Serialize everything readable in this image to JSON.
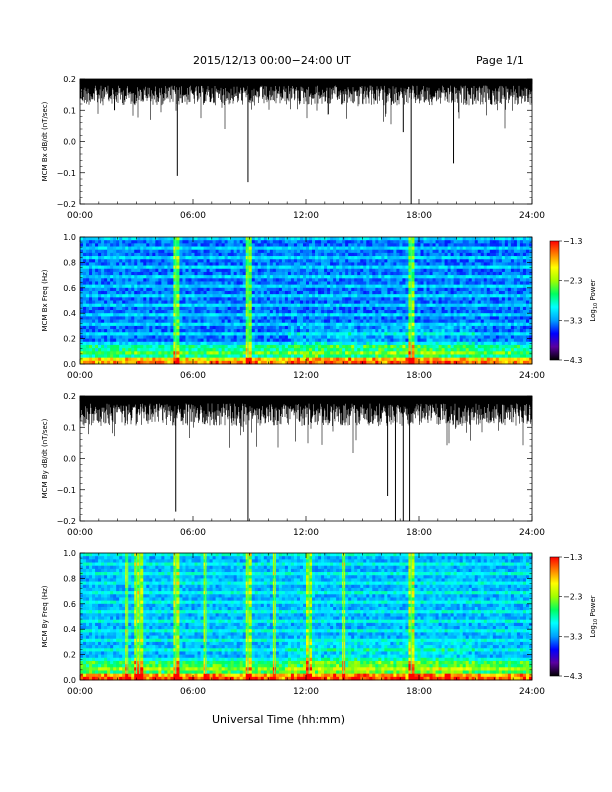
{
  "header": {
    "date_range": "2015/12/13  00:00−24:00 UT",
    "page": "Page 1/1"
  },
  "footer": {
    "xlabel": "Universal Time (hh:mm)"
  },
  "colors": {
    "trace": "#000000",
    "colorscale": [
      "#000000",
      "#5a00a0",
      "#0000ff",
      "#00a0ff",
      "#00ffff",
      "#00ff60",
      "#a0ff00",
      "#ffff00",
      "#ff8000",
      "#ff0000"
    ]
  },
  "chart_data": [
    {
      "type": "line",
      "ylabel": "MCM Bx dB/dt (nT/sec)",
      "xlim": [
        "00:00",
        "24:00"
      ],
      "xticks": [
        "00:00",
        "06:00",
        "12:00",
        "18:00",
        "24:00"
      ],
      "ylim": [
        -0.2,
        0.2
      ],
      "yticks": [
        "0.2",
        "0.1",
        "0.0",
        "−0.1",
        "−0.2"
      ],
      "envelope": {
        "upper": 0.2,
        "typical_lower": 0.13
      },
      "spikes": [
        {
          "t": "05:10",
          "value": -0.11
        },
        {
          "t": "08:55",
          "value": -0.13
        },
        {
          "t": "17:35",
          "value": -0.2
        },
        {
          "t": "17:10",
          "value": 0.03
        },
        {
          "t": "19:50",
          "value": -0.07
        },
        {
          "t": "01:50",
          "value": 0.1
        }
      ]
    },
    {
      "type": "heatmap",
      "ylabel": "MCM Bx Freq (Hz)",
      "xlim": [
        "00:00",
        "24:00"
      ],
      "xticks": [
        "00:00",
        "06:00",
        "12:00",
        "18:00",
        "24:00"
      ],
      "ylim": [
        0.0,
        1.0
      ],
      "yticks": [
        "1.0",
        "0.8",
        "0.6",
        "0.4",
        "0.2",
        "0.0"
      ],
      "colorbar": {
        "label": "Log10 Power",
        "label_main": "Log",
        "label_sub": "10",
        "label_rest": " Power",
        "range": [
          -4.3,
          -1.3
        ],
        "ticks": [
          "−1.3",
          "−2.3",
          "−3.3",
          "−4.3"
        ]
      },
      "vertical_events": [
        "05:05",
        "08:55",
        "17:35"
      ]
    },
    {
      "type": "line",
      "ylabel": "MCM By dB/dt (nT/sec)",
      "xlim": [
        "00:00",
        "24:00"
      ],
      "xticks": [
        "00:00",
        "06:00",
        "12:00",
        "18:00",
        "24:00"
      ],
      "ylim": [
        -0.2,
        0.2
      ],
      "yticks": [
        "0.2",
        "0.1",
        "0.0",
        "−0.1",
        "−0.2"
      ],
      "envelope": {
        "upper": 0.2,
        "typical_lower": 0.12
      },
      "spikes": [
        {
          "t": "05:05",
          "value": -0.17
        },
        {
          "t": "08:55",
          "value": -0.2
        },
        {
          "t": "16:45",
          "value": -0.2
        },
        {
          "t": "17:10",
          "value": -0.2
        },
        {
          "t": "17:30",
          "value": -0.2
        },
        {
          "t": "16:20",
          "value": -0.12
        }
      ]
    },
    {
      "type": "heatmap",
      "ylabel": "MCM By Freq (Hz)",
      "xlim": [
        "00:00",
        "24:00"
      ],
      "xticks": [
        "00:00",
        "06:00",
        "12:00",
        "18:00",
        "24:00"
      ],
      "ylim": [
        0.0,
        1.0
      ],
      "yticks": [
        "1.0",
        "0.8",
        "0.6",
        "0.4",
        "0.2",
        "0.0"
      ],
      "colorbar": {
        "label": "Log10 Power",
        "label_main": "Log",
        "label_sub": "10",
        "label_rest": " Power",
        "range": [
          -4.3,
          -1.3
        ],
        "ticks": [
          "−1.3",
          "−2.3",
          "−3.3",
          "−4.3"
        ]
      },
      "vertical_events": [
        "02:30",
        "03:00",
        "03:10",
        "05:05",
        "06:40",
        "08:55",
        "10:20",
        "12:10",
        "14:00",
        "17:35"
      ]
    }
  ]
}
